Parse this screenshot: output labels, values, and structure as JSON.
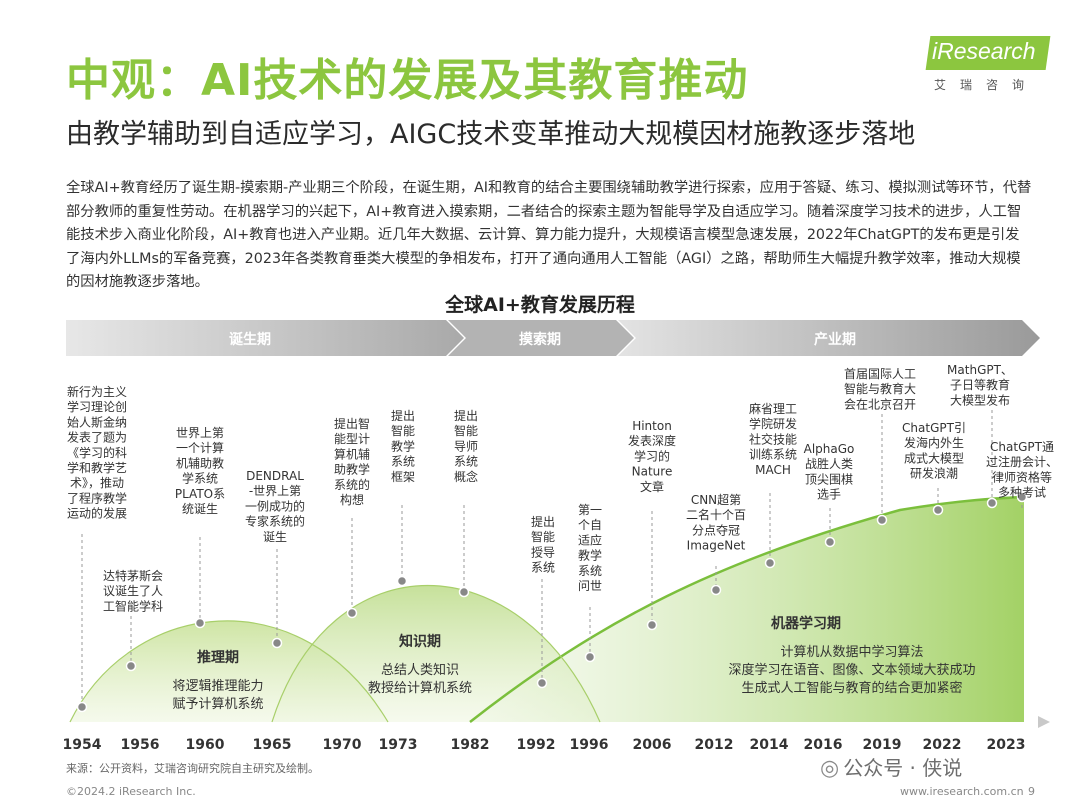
{
  "header": {
    "title": "中观：AI技术的发展及其教育推动",
    "subtitle": "由教学辅助到自适应学习，AIGC技术变革推动大规模因材施教逐步落地",
    "logo_text": "iResearch",
    "logo_sub": "艾瑞咨询"
  },
  "intro": "全球AI+教育经历了诞生期-摸索期-产业期三个阶段，在诞生期，AI和教育的结合主要围绕辅助教学进行探索，应用于答疑、练习、模拟测试等环节，代替部分教师的重复性劳动。在机器学习的兴起下，AI+教育进入摸索期，二者结合的探索主题为智能导学及自适应学习。随着深度学习技术的进步，人工智能技术步入商业化阶段，AI+教育也进入产业期。近几年大数据、云计算、算力能力提升，大规模语言模型急速发展，2022年ChatGPT的发布更是引发了海内外LLMs的军备竞赛，2023年各类教育垂类大模型的争相发布，打开了通向通用人工智能（AGI）之路，帮助师生大幅提升教学效率，推动大规模的因材施教逐步落地。",
  "chart_data": {
    "type": "diagram",
    "title": "全球AI+教育发展历程",
    "phases": [
      "诞生期",
      "摸索期",
      "产业期"
    ],
    "years": [
      "1954",
      "1956",
      "1960",
      "1965",
      "1970",
      "1973",
      "1982",
      "1992",
      "1996",
      "2006",
      "2012",
      "2014",
      "2016",
      "2019",
      "2022",
      "2023"
    ],
    "eras": [
      {
        "name": "推理期",
        "lines": [
          "将逻辑推理能力",
          "赋予计算机系统"
        ]
      },
      {
        "name": "知识期",
        "lines": [
          "总结人类知识",
          "教授给计算机系统"
        ]
      },
      {
        "name": "机器学习期",
        "lines": [
          "计算机从数据中学习算法",
          "深度学习在语音、图像、文本领域大获成功",
          "生成式人工智能与教育的结合更加紧密"
        ]
      }
    ],
    "events": [
      {
        "year": "1954",
        "lines": [
          "新行为主义",
          "学习理论创",
          "始人斯金纳",
          "发表了题为",
          "《学习的科",
          "学和教学艺",
          "术》，推动",
          "了程序教学",
          "运动的发展"
        ]
      },
      {
        "year": "1956",
        "lines": [
          "达特茅斯会",
          "议诞生了人",
          "工智能学科"
        ]
      },
      {
        "year": "1960",
        "lines": [
          "世界上第",
          "一个计算",
          "机辅助教",
          "学系统",
          "PLATO系",
          "统诞生"
        ]
      },
      {
        "year": "1965",
        "lines": [
          "DENDRAL",
          "-世界上第",
          "一例成功的",
          "专家系统的",
          "诞生"
        ]
      },
      {
        "year": "1970",
        "lines": [
          "提出智",
          "能型计",
          "算机辅",
          "助教学",
          "系统的",
          "构想"
        ]
      },
      {
        "year": "1973",
        "lines": [
          "提出",
          "智能",
          "教学",
          "系统",
          "框架"
        ]
      },
      {
        "year": "1982",
        "lines": [
          "提出",
          "智能",
          "导师",
          "系统",
          "概念"
        ]
      },
      {
        "year": "1992",
        "lines": [
          "提出",
          "智能",
          "授导",
          "系统"
        ]
      },
      {
        "year": "1996",
        "lines": [
          "第一",
          "个自",
          "适应",
          "教学",
          "系统",
          "问世"
        ]
      },
      {
        "year": "2006",
        "lines": [
          "Hinton",
          "发表深度",
          "学习的",
          "Nature",
          "文章"
        ]
      },
      {
        "year": "2012",
        "lines": [
          "CNN超第",
          "二名十个百",
          "分点夺冠",
          "ImageNet"
        ]
      },
      {
        "year": "2014",
        "lines": [
          "麻省理工",
          "学院研发",
          "社交技能",
          "训练系统",
          "MACH"
        ]
      },
      {
        "year": "2016",
        "lines": [
          "AlphaGo",
          "战胜人类",
          "顶尖围棋",
          "选手"
        ]
      },
      {
        "year": "2019",
        "lines": [
          "首届国际人工",
          "智能与教育大",
          "会在北京召开"
        ]
      },
      {
        "year": "2022",
        "lines": [
          "ChatGPT引",
          "发海内外生",
          "成式大模型",
          "研发浪潮"
        ]
      },
      {
        "year": "2023a",
        "lines": [
          "MathGPT、",
          "子日等教育",
          "大模型发布"
        ]
      },
      {
        "year": "2023b",
        "lines": [
          "ChatGPT通",
          "过注册会计、",
          "律师资格等",
          "多种考试"
        ]
      }
    ]
  },
  "source": "来源：公开资料，艾瑞咨询研究院自主研究及绘制。",
  "footer": {
    "copyright": "©2024.2 iResearch Inc.",
    "website": "www.iresearch.com.cn",
    "page": "9"
  },
  "watermark": "公众号 · 侠说",
  "colors": {
    "accent": "#8cc63f",
    "dark_green": "#5a9e2c",
    "arrow_gray": "#c8c8c8"
  }
}
